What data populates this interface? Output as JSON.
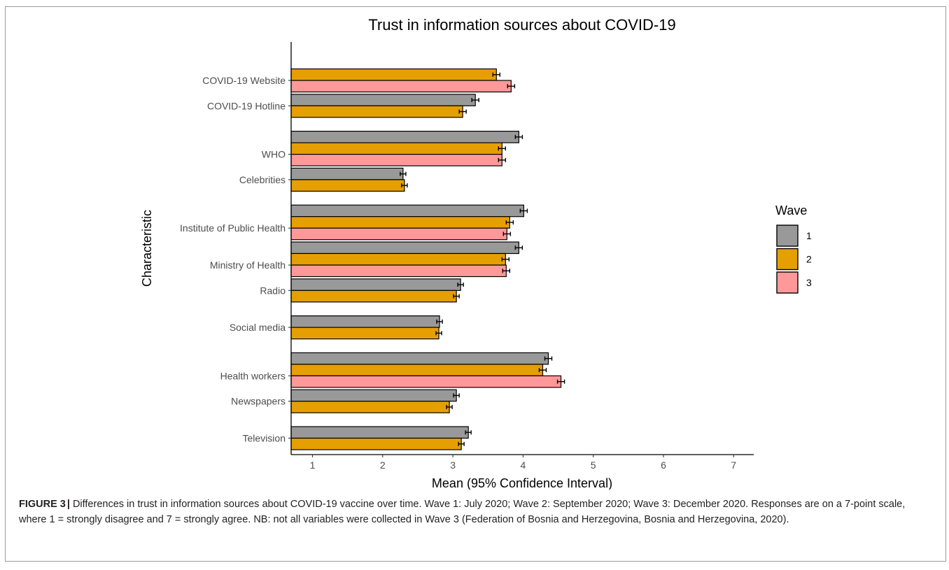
{
  "figure": {
    "label": "FIGURE 3",
    "separator": "|",
    "caption_text": "Differences in trust in information sources about COVID-19 vaccine over time. Wave 1: July 2020; Wave 2: September 2020; Wave 3: December 2020. Responses are on a 7-point scale, where 1 = strongly disagree and 7 = strongly agree. NB: not all variables were collected in Wave 3 (Federation of Bosnia and Herzegovina, Bosnia and Herzegovina, 2020)."
  },
  "chart_data": {
    "type": "bar",
    "orientation": "horizontal",
    "title": "Trust in information sources about COVID-19",
    "xlabel": "Mean (95% Confidence Interval)",
    "ylabel": "Characteristic",
    "xlim": [
      0.7,
      7.3
    ],
    "xticks": [
      "1",
      "2",
      "3",
      "4",
      "5",
      "6",
      "7"
    ],
    "grid": false,
    "legend": {
      "title": "Wave",
      "position": "right"
    },
    "categories": [
      "COVID-19 Website",
      "COVID-19 Hotline",
      "WHO",
      "Celebrities",
      "Institute of Public Health",
      "Ministry of Health",
      "Radio",
      "Social media",
      "Health workers",
      "Newspapers",
      "Television"
    ],
    "series": [
      {
        "name": "1",
        "color": "#999999",
        "values": [
          null,
          3.32,
          3.94,
          2.29,
          4.01,
          3.94,
          3.11,
          2.81,
          4.36,
          3.05,
          3.22
        ],
        "ci_half": [
          null,
          0.05,
          0.05,
          0.04,
          0.05,
          0.05,
          0.04,
          0.04,
          0.05,
          0.04,
          0.04
        ]
      },
      {
        "name": "2",
        "color": "#E69F00",
        "values": [
          3.62,
          3.14,
          3.7,
          2.31,
          3.81,
          3.75,
          3.05,
          2.8,
          4.28,
          2.95,
          3.12
        ],
        "ci_half": [
          0.05,
          0.05,
          0.05,
          0.04,
          0.05,
          0.05,
          0.04,
          0.04,
          0.05,
          0.04,
          0.04
        ]
      },
      {
        "name": "3",
        "color": "#FF9999",
        "values": [
          3.83,
          null,
          3.7,
          null,
          3.77,
          3.76,
          null,
          null,
          4.54,
          null,
          null
        ],
        "ci_half": [
          0.05,
          null,
          0.05,
          null,
          0.05,
          0.05,
          null,
          null,
          0.05,
          null,
          null
        ]
      }
    ]
  }
}
